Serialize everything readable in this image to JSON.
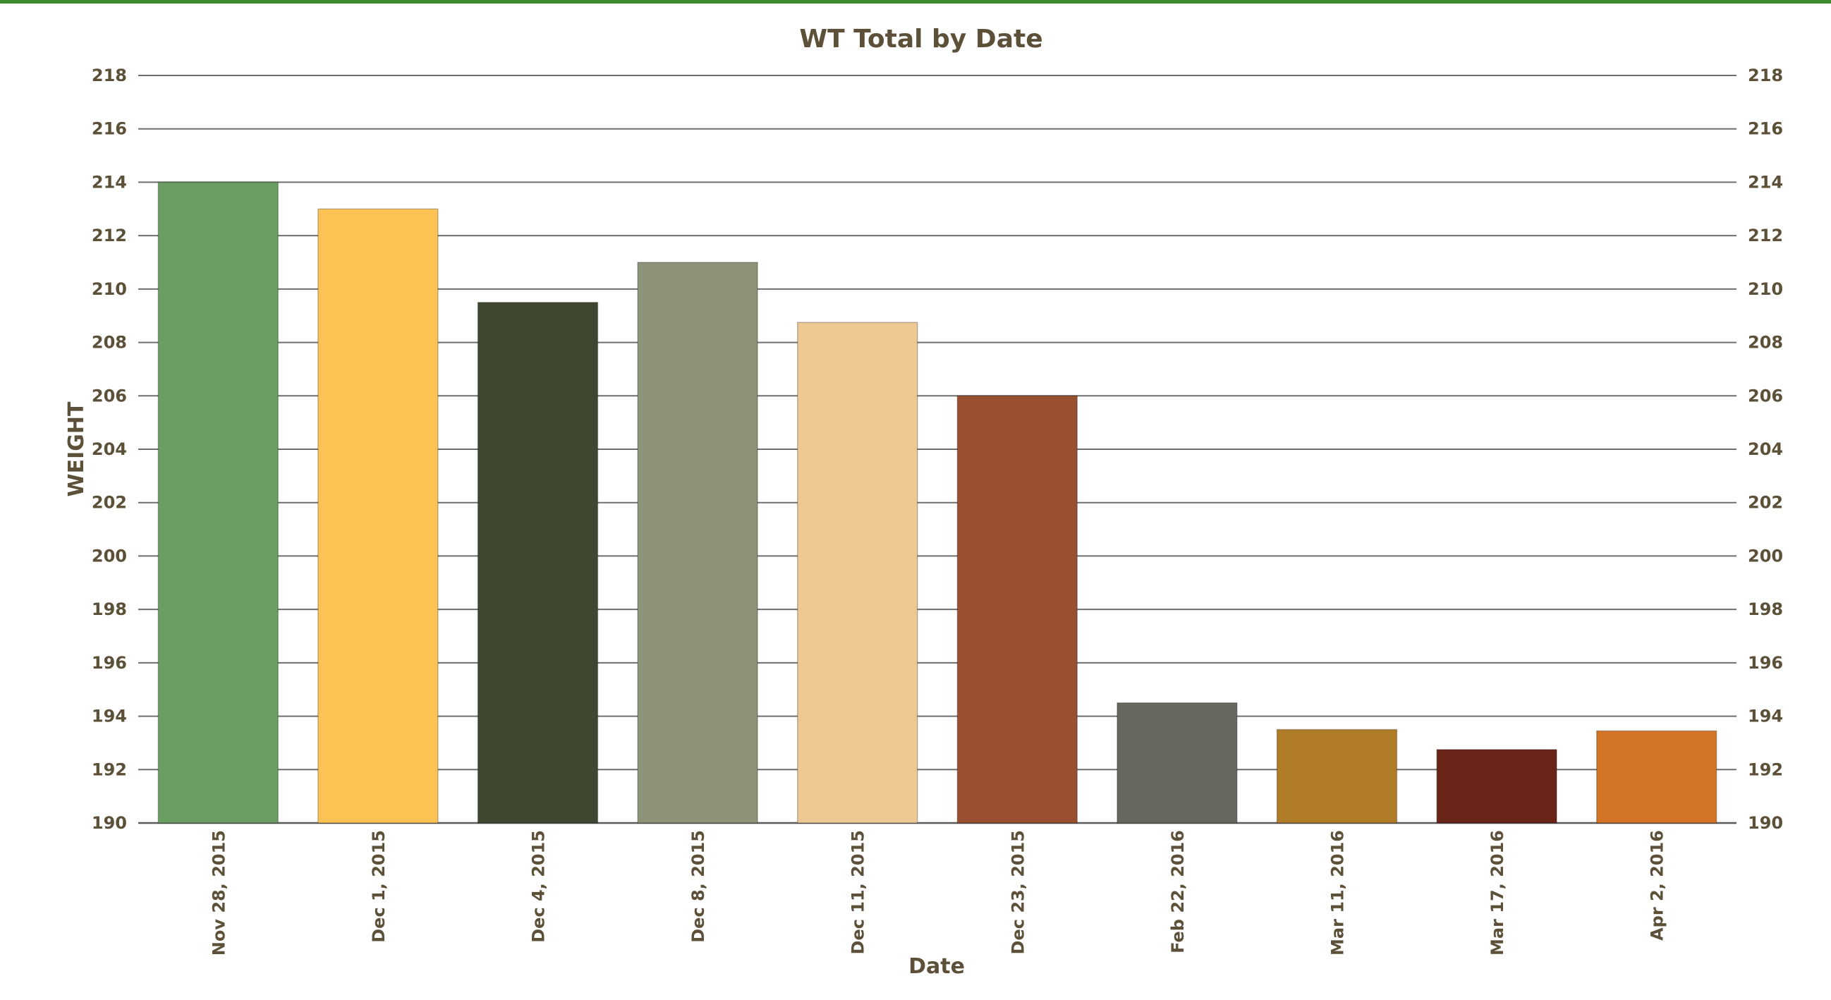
{
  "chart_data": {
    "type": "bar",
    "title": "WT Total by Date",
    "xlabel": "Date",
    "ylabel": "WEIGHT",
    "ylim": [
      190,
      218
    ],
    "ytick_step": 2,
    "secondary_y_axis": true,
    "grid": true,
    "legend": "none",
    "categories": [
      "Nov 28, 2015",
      "Dec 1, 2015",
      "Dec 4, 2015",
      "Dec 8, 2015",
      "Dec 11, 2015",
      "Dec 23, 2015",
      "Feb 22, 2016",
      "Mar 11, 2016",
      "Mar 17, 2016",
      "Apr 2, 2016"
    ],
    "values": [
      214,
      213,
      209.5,
      211,
      208.75,
      206,
      194.5,
      193.5,
      192.75,
      193.45
    ],
    "colors": [
      "#6a9e62",
      "#fec354",
      "#3e4830",
      "#8d9378",
      "#edc893",
      "#9a5030",
      "#666860",
      "#b17c28",
      "#6b2418",
      "#d47426"
    ],
    "text_color": "#5c5138",
    "grid_color": "#6e6e6e",
    "frame_color": "#3d8b2e"
  }
}
